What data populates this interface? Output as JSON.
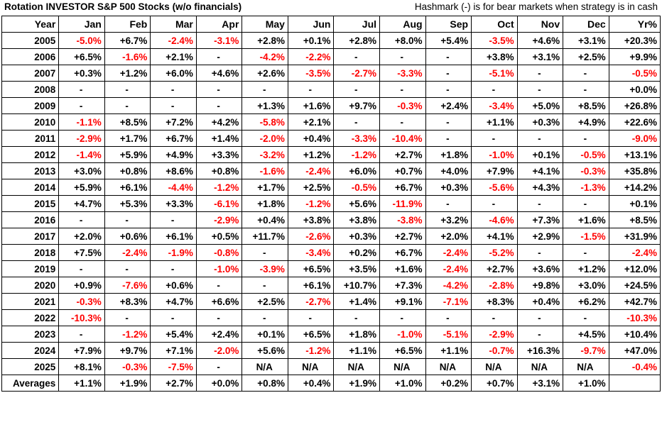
{
  "title": "Rotation INVESTOR S&P 500 Stocks (w/o financials)",
  "note": "Hashmark (-) is for bear markets when strategy is in cash",
  "columns": [
    "Year",
    "Jan",
    "Feb",
    "Mar",
    "Apr",
    "May",
    "Jun",
    "Jul",
    "Aug",
    "Sep",
    "Oct",
    "Nov",
    "Dec",
    "Yr%"
  ],
  "rows": [
    [
      "2005",
      "-5.0%",
      "+6.7%",
      "-2.4%",
      "-3.1%",
      "+2.8%",
      "+0.1%",
      "+2.8%",
      "+8.0%",
      "+5.4%",
      "-3.5%",
      "+4.6%",
      "+3.1%",
      "+20.3%"
    ],
    [
      "2006",
      "+6.5%",
      "-1.6%",
      "+2.1%",
      "-",
      "-4.2%",
      "-2.2%",
      "-",
      "-",
      "-",
      "+3.8%",
      "+3.1%",
      "+2.5%",
      "+9.9%"
    ],
    [
      "2007",
      "+0.3%",
      "+1.2%",
      "+6.0%",
      "+4.6%",
      "+2.6%",
      "-3.5%",
      "-2.7%",
      "-3.3%",
      "-",
      "-5.1%",
      "-",
      "-",
      "-0.5%"
    ],
    [
      "2008",
      "-",
      "-",
      "-",
      "-",
      "-",
      "-",
      "-",
      "-",
      "-",
      "-",
      "-",
      "-",
      "+0.0%"
    ],
    [
      "2009",
      "-",
      "-",
      "-",
      "-",
      "+1.3%",
      "+1.6%",
      "+9.7%",
      "-0.3%",
      "+2.4%",
      "-3.4%",
      "+5.0%",
      "+8.5%",
      "+26.8%"
    ],
    [
      "2010",
      "-1.1%",
      "+8.5%",
      "+7.2%",
      "+4.2%",
      "-5.8%",
      "+2.1%",
      "-",
      "-",
      "-",
      "+1.1%",
      "+0.3%",
      "+4.9%",
      "+22.6%"
    ],
    [
      "2011",
      "-2.9%",
      "+1.7%",
      "+6.7%",
      "+1.4%",
      "-2.0%",
      "+0.4%",
      "-3.3%",
      "-10.4%",
      "-",
      "-",
      "-",
      "-",
      "-9.0%"
    ],
    [
      "2012",
      "-1.4%",
      "+5.9%",
      "+4.9%",
      "+3.3%",
      "-3.2%",
      "+1.2%",
      "-1.2%",
      "+2.7%",
      "+1.8%",
      "-1.0%",
      "+0.1%",
      "-0.5%",
      "+13.1%"
    ],
    [
      "2013",
      "+3.0%",
      "+0.8%",
      "+8.6%",
      "+0.8%",
      "-1.6%",
      "-2.4%",
      "+6.0%",
      "+0.7%",
      "+4.0%",
      "+7.9%",
      "+4.1%",
      "-0.3%",
      "+35.8%"
    ],
    [
      "2014",
      "+5.9%",
      "+6.1%",
      "-4.4%",
      "-1.2%",
      "+1.7%",
      "+2.5%",
      "-0.5%",
      "+6.7%",
      "+0.3%",
      "-5.6%",
      "+4.3%",
      "-1.3%",
      "+14.2%"
    ],
    [
      "2015",
      "+4.7%",
      "+5.3%",
      "+3.3%",
      "-6.1%",
      "+1.8%",
      "-1.2%",
      "+5.6%",
      "-11.9%",
      "-",
      "-",
      "-",
      "-",
      "+0.1%"
    ],
    [
      "2016",
      "-",
      "-",
      "-",
      "-2.9%",
      "+0.4%",
      "+3.8%",
      "+3.8%",
      "-3.8%",
      "+3.2%",
      "-4.6%",
      "+7.3%",
      "+1.6%",
      "+8.5%"
    ],
    [
      "2017",
      "+2.0%",
      "+0.6%",
      "+6.1%",
      "+0.5%",
      "+11.7%",
      "-2.6%",
      "+0.3%",
      "+2.7%",
      "+2.0%",
      "+4.1%",
      "+2.9%",
      "-1.5%",
      "+31.9%"
    ],
    [
      "2018",
      "+7.5%",
      "-2.4%",
      "-1.9%",
      "-0.8%",
      "-",
      "-3.4%",
      "+0.2%",
      "+6.7%",
      "-2.4%",
      "-5.2%",
      "-",
      "-",
      "-2.4%"
    ],
    [
      "2019",
      "-",
      "-",
      "-",
      "-1.0%",
      "-3.9%",
      "+6.5%",
      "+3.5%",
      "+1.6%",
      "-2.4%",
      "+2.7%",
      "+3.6%",
      "+1.2%",
      "+12.0%"
    ],
    [
      "2020",
      "+0.9%",
      "-7.6%",
      "+0.6%",
      "-",
      "-",
      "+6.1%",
      "+10.7%",
      "+7.3%",
      "-4.2%",
      "-2.8%",
      "+9.8%",
      "+3.0%",
      "+24.5%"
    ],
    [
      "2021",
      "-0.3%",
      "+8.3%",
      "+4.7%",
      "+6.6%",
      "+2.5%",
      "-2.7%",
      "+1.4%",
      "+9.1%",
      "-7.1%",
      "+8.3%",
      "+0.4%",
      "+6.2%",
      "+42.7%"
    ],
    [
      "2022",
      "-10.3%",
      "-",
      "-",
      "-",
      "-",
      "-",
      "-",
      "-",
      "-",
      "-",
      "-",
      "-",
      "-10.3%"
    ],
    [
      "2023",
      "-",
      "-1.2%",
      "+5.4%",
      "+2.4%",
      "+0.1%",
      "+6.5%",
      "+1.8%",
      "-1.0%",
      "-5.1%",
      "-2.9%",
      "-",
      "+4.5%",
      "+10.4%"
    ],
    [
      "2024",
      "+7.9%",
      "+9.7%",
      "+7.1%",
      "-2.0%",
      "+5.6%",
      "-1.2%",
      "+1.1%",
      "+6.5%",
      "+1.1%",
      "-0.7%",
      "+16.3%",
      "-9.7%",
      "+47.0%"
    ],
    [
      "2025",
      "+8.1%",
      "-0.3%",
      "-7.5%",
      "-",
      "N/A",
      "N/A",
      "N/A",
      "N/A",
      "N/A",
      "N/A",
      "N/A",
      "N/A",
      "-0.4%"
    ],
    [
      "Averages",
      "+1.1%",
      "+1.9%",
      "+2.7%",
      "+0.0%",
      "+0.8%",
      "+0.4%",
      "+1.9%",
      "+1.0%",
      "+0.2%",
      "+0.7%",
      "+3.1%",
      "+1.0%",
      ""
    ]
  ],
  "colors": {
    "negative": "#ff0000",
    "positive": "#000000",
    "border": "#000000"
  }
}
